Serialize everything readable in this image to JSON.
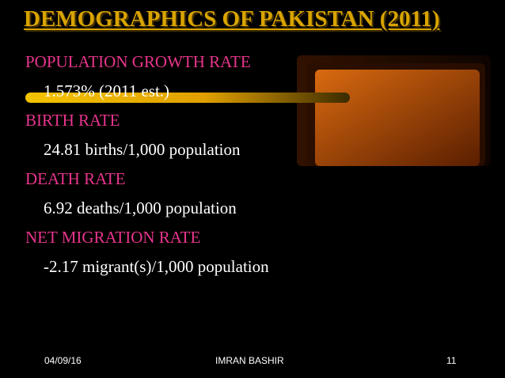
{
  "slide": {
    "title": "DEMOGRAPHICS OF PAKISTAN (2011)",
    "items": [
      {
        "heading": "POPULATION GROWTH RATE",
        "value": "1.573% (2011 est.)"
      },
      {
        "heading": "BIRTH RATE",
        "value": "24.81 births/1,000 population"
      },
      {
        "heading": "DEATH RATE",
        "value": "6.92 deaths/1,000 population"
      },
      {
        "heading": "NET MIGRATION RATE",
        "value": "-2.17 migrant(s)/1,000 population"
      }
    ]
  },
  "footer": {
    "date": "04/09/16",
    "author": "IMRAN BASHIR",
    "page": "11"
  },
  "colors": {
    "background": "#000000",
    "title": "#d9a400",
    "heading": "#e8358c",
    "value": "#ffffff",
    "accent_bar": "#e0a800",
    "accent_block": "#c8560a"
  }
}
